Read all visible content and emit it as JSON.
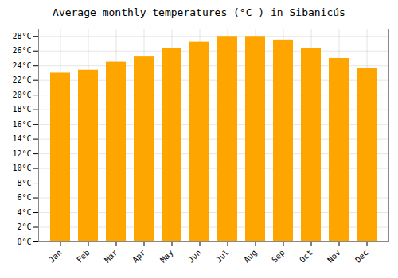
{
  "chart_data": {
    "type": "bar",
    "title": "Average monthly temperatures (°C ) in Sibanicús",
    "categories": [
      "Jan",
      "Feb",
      "Mar",
      "Apr",
      "May",
      "Jun",
      "Jul",
      "Aug",
      "Sep",
      "Oct",
      "Nov",
      "Dec"
    ],
    "values": [
      23.0,
      23.4,
      24.5,
      25.2,
      26.3,
      27.2,
      28.0,
      28.0,
      27.5,
      26.4,
      25.0,
      23.7
    ],
    "color": "#FFA500",
    "ylim": [
      0,
      29
    ],
    "yticks": [
      {
        "value": 0,
        "label": "0°C"
      },
      {
        "value": 2,
        "label": "2°C"
      },
      {
        "value": 4,
        "label": "4°C"
      },
      {
        "value": 6,
        "label": "6°C"
      },
      {
        "value": 8,
        "label": "8°C"
      },
      {
        "value": 10,
        "label": "10°C"
      },
      {
        "value": 12,
        "label": "12°C"
      },
      {
        "value": 14,
        "label": "14°C"
      },
      {
        "value": 16,
        "label": "16°C"
      },
      {
        "value": 18,
        "label": "18°C"
      },
      {
        "value": 20,
        "label": "20°C"
      },
      {
        "value": 22,
        "label": "22°C"
      },
      {
        "value": 24,
        "label": "24°C"
      },
      {
        "value": 26,
        "label": "26°C"
      },
      {
        "value": 28,
        "label": "28°C"
      }
    ],
    "grid": true
  }
}
